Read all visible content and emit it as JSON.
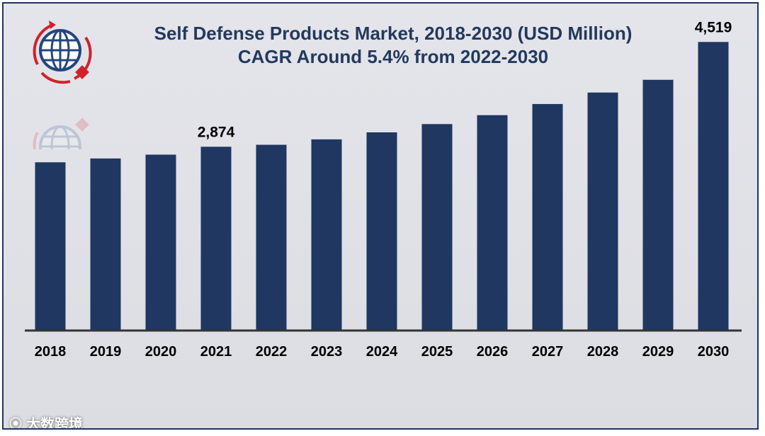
{
  "chart_data": {
    "type": "bar",
    "title": "Self Defense Products Market, 2018-2030 (USD Million)",
    "subtitle": "CAGR Around 5.4% from 2022-2030",
    "categories": [
      "2018",
      "2019",
      "2020",
      "2021",
      "2022",
      "2023",
      "2024",
      "2025",
      "2026",
      "2027",
      "2028",
      "2029",
      "2030"
    ],
    "values": [
      2630,
      2690,
      2750,
      2874,
      2905,
      2990,
      3100,
      3230,
      3370,
      3545,
      3725,
      3925,
      4519
    ],
    "data_labels": [
      {
        "index": 3,
        "text": "2,874"
      },
      {
        "index": 12,
        "text": "4,519"
      }
    ],
    "xlabel": "",
    "ylabel": "",
    "ylim": [
      0,
      5000
    ],
    "grid": false,
    "legend": "none",
    "bar_color": "#1f3761"
  },
  "watermark": {
    "text": "大数跨境",
    "icon": "brand-icon"
  }
}
